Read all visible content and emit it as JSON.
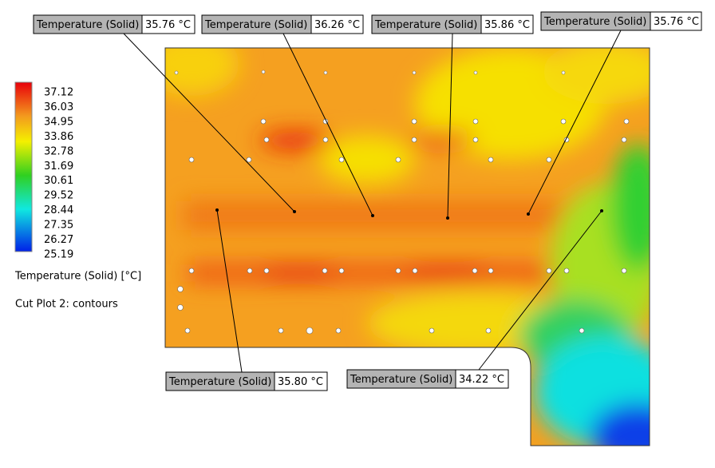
{
  "legend": {
    "ticks": [
      "37.12",
      "36.03",
      "34.95",
      "33.86",
      "32.78",
      "31.69",
      "30.61",
      "29.52",
      "28.44",
      "27.35",
      "26.27",
      "25.19"
    ],
    "title": "Temperature (Solid) [°C]",
    "subtitle": "Cut Plot 2: contours"
  },
  "probes": [
    {
      "label": "Temperature (Solid)",
      "value": "35.76 °C"
    },
    {
      "label": "Temperature (Solid)",
      "value": "36.26 °C"
    },
    {
      "label": "Temperature (Solid)",
      "value": "35.86 °C"
    },
    {
      "label": "Temperature (Solid)",
      "value": "35.76 °C"
    },
    {
      "label": "Temperature (Solid)",
      "value": "35.80 °C"
    },
    {
      "label": "Temperature (Solid)",
      "value": "34.22 °C"
    }
  ]
}
